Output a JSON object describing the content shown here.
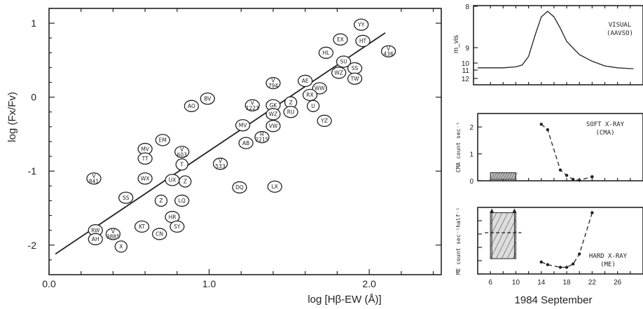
{
  "chart_data": [
    {
      "type": "scatter",
      "xlabel": "log [Hβ-EW (Å)]",
      "ylabel": "log (Fx/Fv)",
      "xlim": [
        0.0,
        2.45
      ],
      "ylim": [
        -2.4,
        1.2
      ],
      "x_ticks": [
        "0.0",
        "1.0",
        "2.0"
      ],
      "y_ticks": [
        "1",
        "0",
        "-1",
        "-2"
      ],
      "fit_line": {
        "x": [
          0.04,
          2.1
        ],
        "y": [
          -2.12,
          0.87
        ]
      },
      "points": [
        {
          "label": "YY",
          "x": 1.95,
          "y": 0.98
        },
        {
          "label": "HT",
          "x": 1.96,
          "y": 0.76
        },
        {
          "label": "EX",
          "x": 1.82,
          "y": 0.78
        },
        {
          "label": "V 436",
          "x": 2.12,
          "y": 0.62
        },
        {
          "label": "HL",
          "x": 1.73,
          "y": 0.6
        },
        {
          "label": "SU",
          "x": 1.84,
          "y": 0.48
        },
        {
          "label": "SS",
          "x": 1.91,
          "y": 0.39
        },
        {
          "label": "WZ",
          "x": 1.81,
          "y": 0.33
        },
        {
          "label": "TW",
          "x": 1.91,
          "y": 0.25
        },
        {
          "label": "V 794",
          "x": 1.4,
          "y": 0.19
        },
        {
          "label": "AE",
          "x": 1.6,
          "y": 0.22
        },
        {
          "label": "WW",
          "x": 1.69,
          "y": 0.12
        },
        {
          "label": "RX",
          "x": 1.63,
          "y": 0.03
        },
        {
          "label": "Z",
          "x": 1.51,
          "y": -0.07
        },
        {
          "label": "U",
          "x": 1.65,
          "y": -0.12
        },
        {
          "label": "RU",
          "x": 1.51,
          "y": -0.2
        },
        {
          "label": "YZ",
          "x": 1.72,
          "y": -0.32
        },
        {
          "label": "GK",
          "x": 1.4,
          "y": -0.11
        },
        {
          "label": "V 1223",
          "x": 1.27,
          "y": -0.11
        },
        {
          "label": "WZ",
          "x": 1.4,
          "y": -0.23
        },
        {
          "label": "VW",
          "x": 1.4,
          "y": -0.39
        },
        {
          "label": "AO",
          "x": 0.89,
          "y": -0.12
        },
        {
          "label": "BV",
          "x": 0.99,
          "y": -0.02
        },
        {
          "label": "MV",
          "x": 1.21,
          "y": -0.38
        },
        {
          "label": "H 2215",
          "x": 1.33,
          "y": -0.54
        },
        {
          "label": "AB",
          "x": 1.23,
          "y": -0.62
        },
        {
          "label": "EM",
          "x": 0.71,
          "y": -0.58
        },
        {
          "label": "MV",
          "x": 0.6,
          "y": -0.7
        },
        {
          "label": "TT",
          "x": 0.6,
          "y": -0.83
        },
        {
          "label": "V 603",
          "x": 0.83,
          "y": -0.74
        },
        {
          "label": "T",
          "x": 0.83,
          "y": -0.91
        },
        {
          "label": "V 533",
          "x": 1.07,
          "y": -0.9
        },
        {
          "label": "V 841",
          "x": 0.28,
          "y": -1.1
        },
        {
          "label": "WX",
          "x": 0.6,
          "y": -1.1
        },
        {
          "label": "UX",
          "x": 0.77,
          "y": -1.12
        },
        {
          "label": "Z",
          "x": 0.85,
          "y": -1.14
        },
        {
          "label": "DQ",
          "x": 1.19,
          "y": -1.22
        },
        {
          "label": "LX",
          "x": 1.41,
          "y": -1.21
        },
        {
          "label": "SS",
          "x": 0.48,
          "y": -1.36
        },
        {
          "label": "Z",
          "x": 0.7,
          "y": -1.4
        },
        {
          "label": "LQ",
          "x": 0.83,
          "y": -1.4
        },
        {
          "label": "HR",
          "x": 0.77,
          "y": -1.62
        },
        {
          "label": "KT",
          "x": 0.58,
          "y": -1.75
        },
        {
          "label": "SY",
          "x": 0.8,
          "y": -1.75
        },
        {
          "label": "CN",
          "x": 0.69,
          "y": -1.85
        },
        {
          "label": "RW",
          "x": 0.29,
          "y": -1.8
        },
        {
          "label": "V 3885",
          "x": 0.4,
          "y": -1.85
        },
        {
          "label": "AH",
          "x": 0.29,
          "y": -1.92
        },
        {
          "label": "X",
          "x": 0.45,
          "y": -2.02
        }
      ]
    },
    {
      "type": "line",
      "title": "VISUAL\n(AAVSO)",
      "ylabel": "m_vis",
      "y_ticks": [
        "8",
        "9",
        "10",
        "11",
        "12"
      ],
      "ylim": [
        12.2,
        8.0
      ],
      "x": [
        4,
        6,
        8,
        10,
        11,
        12,
        13,
        14,
        15,
        16,
        17,
        18,
        20,
        22,
        24,
        26,
        28.5
      ],
      "values": [
        11.3,
        11.3,
        11.3,
        11.25,
        11.15,
        10.7,
        9.6,
        8.6,
        8.3,
        8.6,
        9.2,
        9.9,
        10.6,
        10.95,
        11.2,
        11.3,
        11.35
      ]
    },
    {
      "type": "line",
      "title": "SOFT X-RAY\n(CMA)",
      "ylabel": "CMA count sec⁻¹",
      "y_ticks": [
        "0",
        "1",
        "2"
      ],
      "ylim": [
        0,
        2.5
      ],
      "x": [
        14,
        15,
        17,
        18,
        19,
        20,
        22
      ],
      "values": [
        2.1,
        1.9,
        0.4,
        0.2,
        0.05,
        0.02,
        0.15
      ],
      "band": {
        "x": [
          6,
          10
        ],
        "y": [
          0.05,
          0.3
        ]
      }
    },
    {
      "type": "line",
      "title": "HARD X-RAY\n(ME)",
      "ylabel": "ME count sec⁻¹half⁻¹",
      "y_ticks": [
        "0",
        "2",
        "4",
        "6",
        "8"
      ],
      "ylim": [
        0,
        10
      ],
      "xlabel": "1984 September",
      "x_ticks": [
        "6",
        "10",
        "14",
        "18",
        "22",
        "26"
      ],
      "x": [
        14,
        15,
        17,
        18,
        19,
        20,
        22
      ],
      "values": [
        1.8,
        1.4,
        1.0,
        1.0,
        1.5,
        3.0,
        9.2
      ],
      "band": {
        "x": [
          6,
          10
        ],
        "y": [
          2.3,
          9.2
        ],
        "mean": 6.2
      }
    }
  ]
}
